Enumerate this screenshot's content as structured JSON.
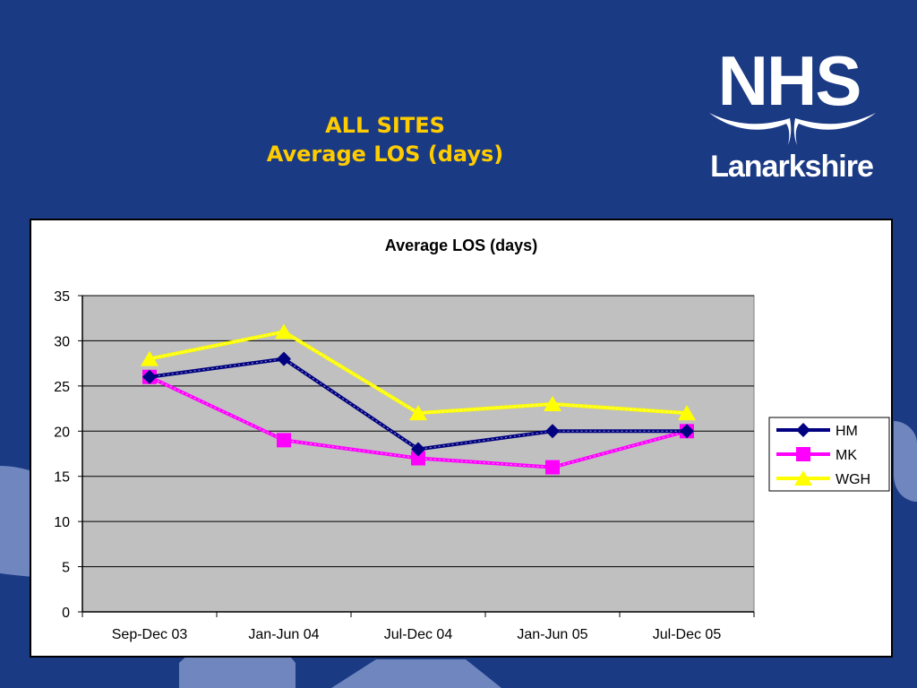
{
  "slide": {
    "title_line1": "ALL SITES",
    "title_line2": "Average LOS (days)"
  },
  "logo": {
    "wordmark": "NHS",
    "region": "Lanarkshire"
  },
  "colors": {
    "background": "#1b3a84",
    "title": "#ffcc00",
    "plot_area": "#c0c0c0"
  },
  "chart_data": {
    "type": "line",
    "title": "Average LOS (days)",
    "xlabel": "",
    "ylabel": "",
    "categories": [
      "Sep-Dec 03",
      "Jan-Jun 04",
      "Jul-Dec 04",
      "Jan-Jun 05",
      "Jul-Dec 05"
    ],
    "ylim": [
      0,
      35
    ],
    "yticks": [
      0,
      5,
      10,
      15,
      20,
      25,
      30,
      35
    ],
    "grid": true,
    "legend_position": "right",
    "series": [
      {
        "name": "HM",
        "values": [
          26,
          28,
          18,
          20,
          20
        ],
        "color": "#000080",
        "marker": "diamond"
      },
      {
        "name": "MK",
        "values": [
          26,
          19,
          17,
          16,
          20
        ],
        "color": "#ff00ff",
        "marker": "square"
      },
      {
        "name": "WGH",
        "values": [
          28,
          31,
          22,
          23,
          22
        ],
        "color": "#ffff00",
        "marker": "triangle"
      }
    ]
  }
}
